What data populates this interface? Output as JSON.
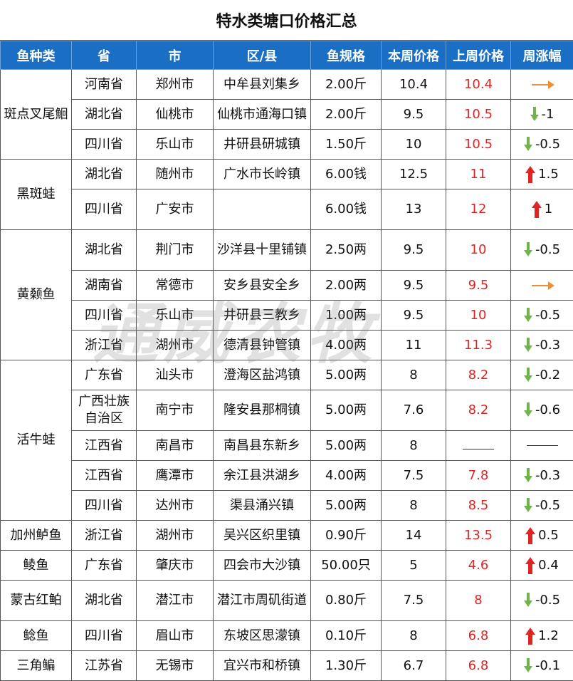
{
  "title": "特水类塘口价格汇总",
  "headers": [
    "鱼种类",
    "省",
    "市",
    "区/县",
    "鱼规格",
    "本周价格",
    "上周价格",
    "周涨幅"
  ],
  "watermark": "通威农牧",
  "groups": [
    {
      "name": "斑点叉尾鮰",
      "rows": [
        {
          "province": "河南省",
          "city": "郑州市",
          "district": "中牟县刘集乡",
          "spec": "2.00斤",
          "this_week": "10.4",
          "last_week": "10.4",
          "trend": "flat",
          "change": ""
        },
        {
          "province": "湖北省",
          "city": "仙桃市",
          "district": "仙桃市通海口镇",
          "spec": "2.00斤",
          "this_week": "9.5",
          "last_week": "10.5",
          "trend": "down",
          "change": "-1"
        },
        {
          "province": "四川省",
          "city": "乐山市",
          "district": "井研县研城镇",
          "spec": "1.50斤",
          "this_week": "10",
          "last_week": "10.5",
          "trend": "down",
          "change": "-0.5"
        }
      ]
    },
    {
      "name": "黑斑蛙",
      "rows": [
        {
          "province": "湖北省",
          "city": "随州市",
          "district": "广水市长岭镇",
          "spec": "6.00钱",
          "this_week": "12.5",
          "last_week": "11",
          "trend": "up",
          "change": "1.5"
        },
        {
          "province": "四川省",
          "city": "广安市",
          "district": "",
          "spec": "6.00钱",
          "this_week": "13",
          "last_week": "12",
          "trend": "up",
          "change": "1"
        }
      ]
    },
    {
      "name": "黄颡鱼",
      "rows": [
        {
          "province": "湖北省",
          "city": "荆门市",
          "district": "沙洋县十里铺镇",
          "spec": "2.50两",
          "this_week": "9.5",
          "last_week": "10",
          "trend": "down",
          "change": "-0.5"
        },
        {
          "province": "湖南省",
          "city": "常德市",
          "district": "安乡县安全乡",
          "spec": "2.00两",
          "this_week": "9.5",
          "last_week": "9.5",
          "trend": "flat",
          "change": ""
        },
        {
          "province": "四川省",
          "city": "乐山市",
          "district": "井研县三教乡",
          "spec": "1.00两",
          "this_week": "9.5",
          "last_week": "10",
          "trend": "down",
          "change": "-0.5"
        },
        {
          "province": "浙江省",
          "city": "湖州市",
          "district": "德清县钟管镇",
          "spec": "4.00两",
          "this_week": "11",
          "last_week": "11.3",
          "trend": "down",
          "change": "-0.3"
        }
      ]
    },
    {
      "name": "活牛蛙",
      "rows": [
        {
          "province": "广东省",
          "city": "汕头市",
          "district": "澄海区盐鸿镇",
          "spec": "5.00两",
          "this_week": "8",
          "last_week": "8.2",
          "trend": "down",
          "change": "-0.2"
        },
        {
          "province": "广西壮族自治区",
          "city": "南宁市",
          "district": "隆安县那桐镇",
          "spec": "5.00两",
          "this_week": "7.6",
          "last_week": "8.2",
          "trend": "down",
          "change": "-0.6"
        },
        {
          "province": "江西省",
          "city": "南昌市",
          "district": "南昌县东新乡",
          "spec": "5.00两",
          "this_week": "8",
          "last_week": "",
          "trend": "none",
          "change": ""
        },
        {
          "province": "江西省",
          "city": "鹰潭市",
          "district": "余江县洪湖乡",
          "spec": "4.00两",
          "this_week": "7.5",
          "last_week": "7.8",
          "trend": "down",
          "change": "-0.3"
        },
        {
          "province": "四川省",
          "city": "达州市",
          "district": "渠县涌兴镇",
          "spec": "5.00两",
          "this_week": "8",
          "last_week": "8.5",
          "trend": "down",
          "change": "-0.5"
        }
      ]
    },
    {
      "name": "加州鲈鱼",
      "rows": [
        {
          "province": "浙江省",
          "city": "湖州市",
          "district": "吴兴区织里镇",
          "spec": "0.90斤",
          "this_week": "14",
          "last_week": "13.5",
          "trend": "up",
          "change": "0.5"
        }
      ]
    },
    {
      "name": "鲮鱼",
      "rows": [
        {
          "province": "广东省",
          "city": "肇庆市",
          "district": "四会市大沙镇",
          "spec": "50.00只",
          "this_week": "5",
          "last_week": "4.6",
          "trend": "up",
          "change": "0.4"
        }
      ]
    },
    {
      "name": "蒙古红鲌",
      "rows": [
        {
          "province": "湖北省",
          "city": "潜江市",
          "district": "潜江市周矶街道",
          "spec": "0.80斤",
          "this_week": "7.5",
          "last_week": "8",
          "trend": "down",
          "change": "-0.5"
        }
      ]
    },
    {
      "name": "鲶鱼",
      "rows": [
        {
          "province": "四川省",
          "city": "眉山市",
          "district": "东坡区思濛镇",
          "spec": "0.10斤",
          "this_week": "8",
          "last_week": "6.8",
          "trend": "up",
          "change": "1.2"
        }
      ]
    },
    {
      "name": "三角鳊",
      "rows": [
        {
          "province": "江苏省",
          "city": "无锡市",
          "district": "宜兴市和桥镇",
          "spec": "1.30斤",
          "this_week": "6.7",
          "last_week": "6.8",
          "trend": "down",
          "change": "-0.1"
        }
      ]
    }
  ]
}
